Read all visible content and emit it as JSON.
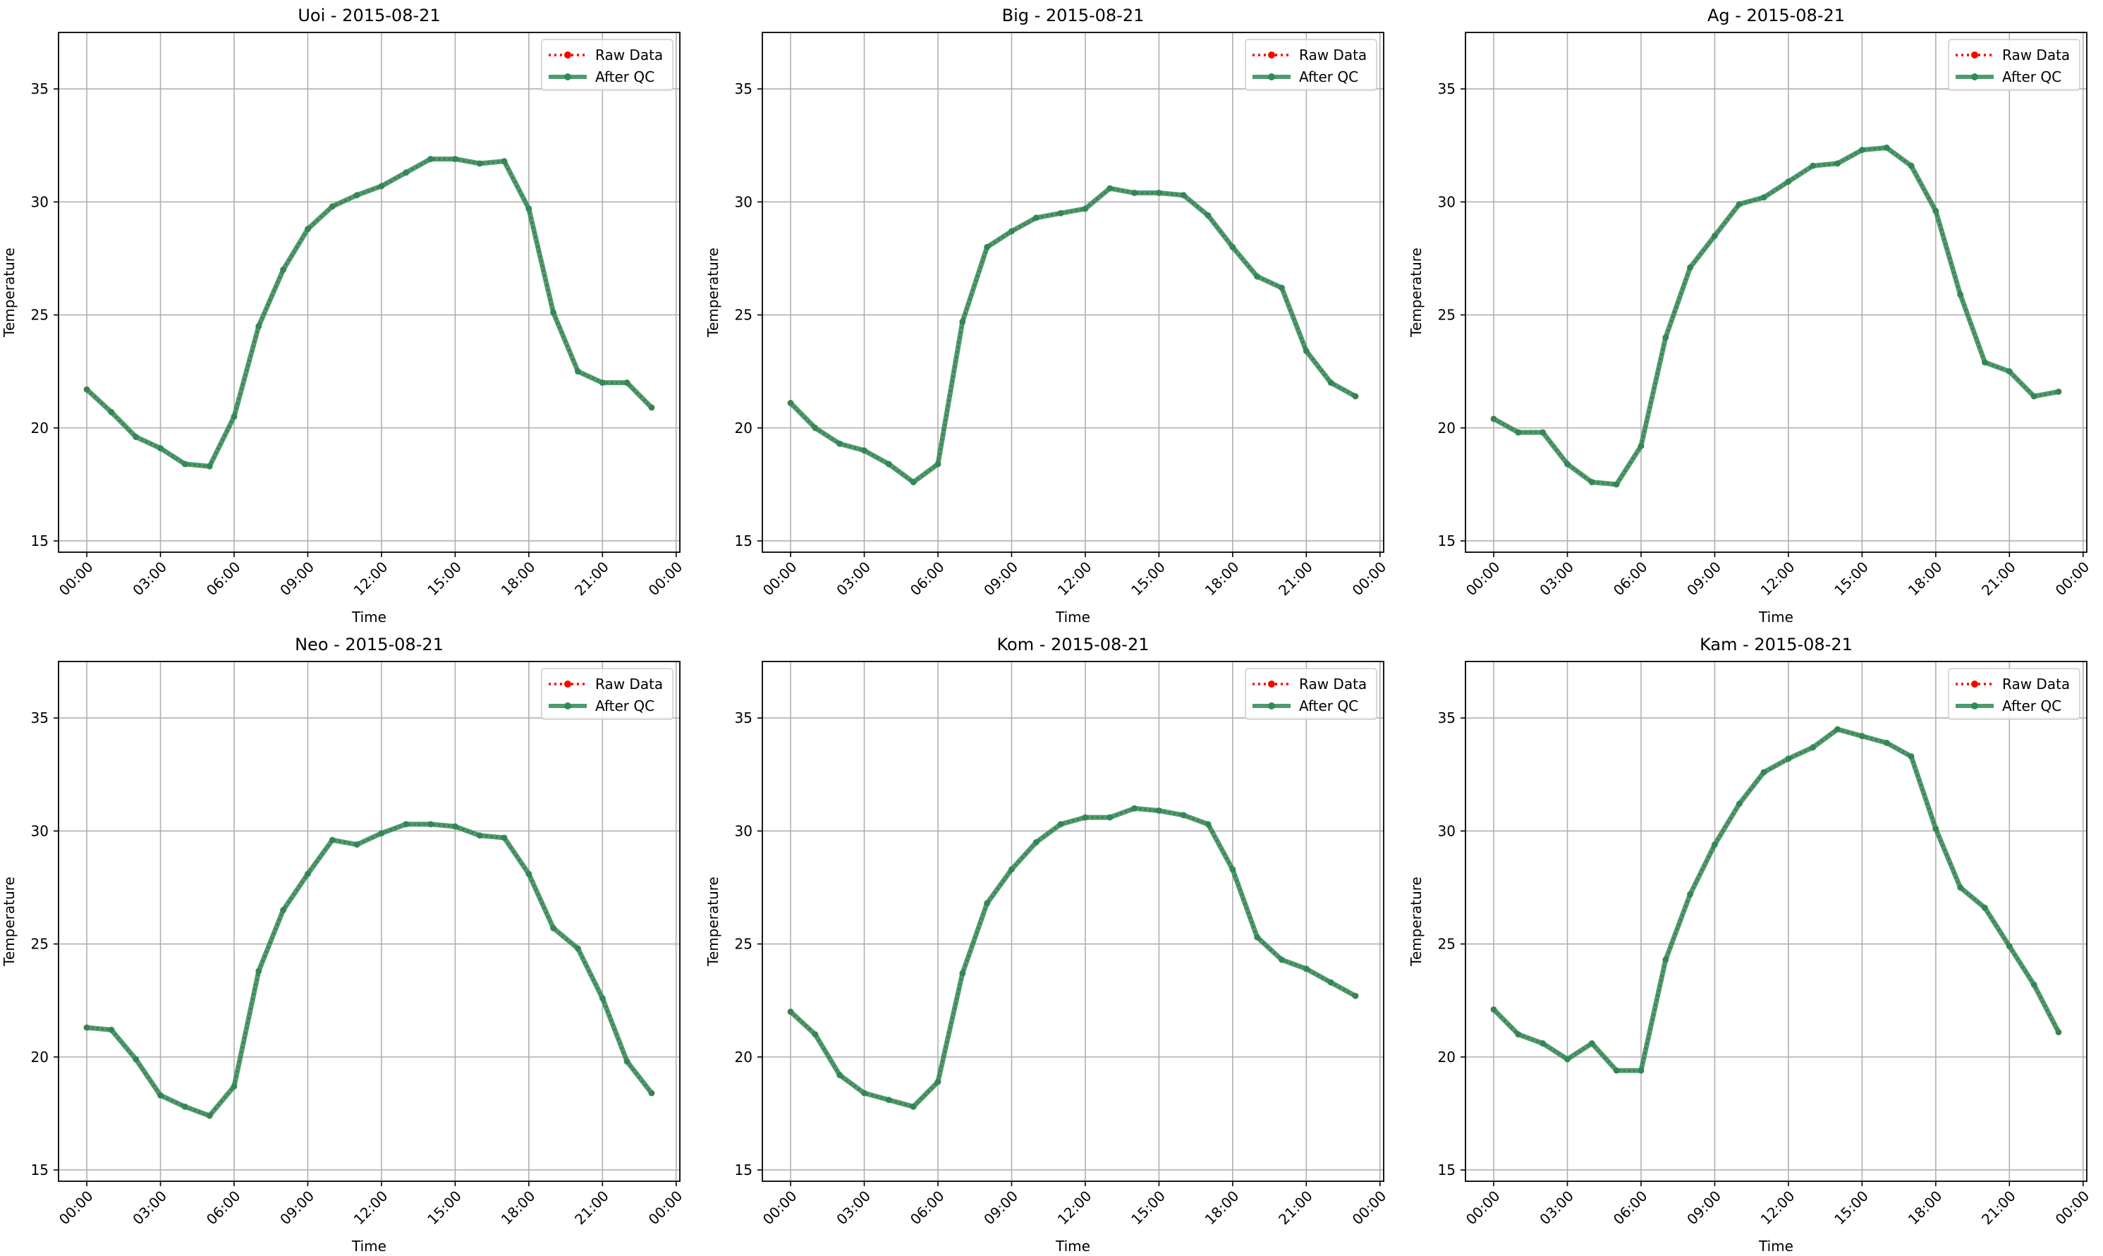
{
  "figure": {
    "legend_labels": [
      "Raw Data",
      "After QC"
    ]
  },
  "colors": {
    "raw": "#ff0000",
    "qc": "#2e8b57",
    "grid": "#b0b0b0",
    "axis": "#000000"
  },
  "chart_data": [
    {
      "type": "line",
      "title": "Uoi - 2015-08-21",
      "xlabel": "Time",
      "ylabel": "Temperature",
      "x_ticks": [
        "00:00",
        "03:00",
        "06:00",
        "09:00",
        "12:00",
        "15:00",
        "18:00",
        "21:00",
        "00:00"
      ],
      "y_ticks": [
        15,
        20,
        25,
        30,
        35
      ],
      "xlim": [
        -1.15,
        24.15
      ],
      "ylim": [
        14.5,
        37.5
      ],
      "grid": true,
      "legend_position": "top-right",
      "x": [
        "00:00",
        "01:00",
        "02:00",
        "03:00",
        "04:00",
        "05:00",
        "06:00",
        "07:00",
        "08:00",
        "09:00",
        "10:00",
        "11:00",
        "12:00",
        "13:00",
        "14:00",
        "15:00",
        "16:00",
        "17:00",
        "18:00",
        "19:00",
        "20:00",
        "21:00",
        "22:00",
        "23:00"
      ],
      "series": [
        {
          "name": "Raw Data",
          "values": [
            21.7,
            20.7,
            19.6,
            19.1,
            18.4,
            18.3,
            20.5,
            24.5,
            27.0,
            28.8,
            29.8,
            30.3,
            30.7,
            31.3,
            31.9,
            31.9,
            31.7,
            31.8,
            29.7,
            25.1,
            22.5,
            22.0,
            22.0,
            20.9
          ]
        },
        {
          "name": "After QC",
          "values": [
            21.7,
            20.7,
            19.6,
            19.1,
            18.4,
            18.3,
            20.5,
            24.5,
            27.0,
            28.8,
            29.8,
            30.3,
            30.7,
            31.3,
            31.9,
            31.9,
            31.7,
            31.8,
            29.7,
            25.1,
            22.5,
            22.0,
            22.0,
            20.9
          ]
        }
      ]
    },
    {
      "type": "line",
      "title": "Big - 2015-08-21",
      "xlabel": "Time",
      "ylabel": "Temperature",
      "x_ticks": [
        "00:00",
        "03:00",
        "06:00",
        "09:00",
        "12:00",
        "15:00",
        "18:00",
        "21:00",
        "00:00"
      ],
      "y_ticks": [
        15,
        20,
        25,
        30,
        35
      ],
      "xlim": [
        -1.15,
        24.15
      ],
      "ylim": [
        14.5,
        37.5
      ],
      "grid": true,
      "legend_position": "top-right",
      "x": [
        "00:00",
        "01:00",
        "02:00",
        "03:00",
        "04:00",
        "05:00",
        "06:00",
        "07:00",
        "08:00",
        "09:00",
        "10:00",
        "11:00",
        "12:00",
        "13:00",
        "14:00",
        "15:00",
        "16:00",
        "17:00",
        "18:00",
        "19:00",
        "20:00",
        "21:00",
        "22:00",
        "23:00"
      ],
      "series": [
        {
          "name": "Raw Data",
          "values": [
            21.1,
            20.0,
            19.3,
            19.0,
            18.4,
            17.6,
            18.4,
            24.7,
            28.0,
            28.7,
            29.3,
            29.5,
            29.7,
            30.6,
            30.4,
            30.4,
            30.3,
            29.4,
            28.0,
            26.7,
            26.2,
            23.4,
            22.0,
            21.4
          ]
        },
        {
          "name": "After QC",
          "values": [
            21.1,
            20.0,
            19.3,
            19.0,
            18.4,
            17.6,
            18.4,
            24.7,
            28.0,
            28.7,
            29.3,
            29.5,
            29.7,
            30.6,
            30.4,
            30.4,
            30.3,
            29.4,
            28.0,
            26.7,
            26.2,
            23.4,
            22.0,
            21.4
          ]
        }
      ]
    },
    {
      "type": "line",
      "title": "Ag - 2015-08-21",
      "xlabel": "Time",
      "ylabel": "Temperature",
      "x_ticks": [
        "00:00",
        "03:00",
        "06:00",
        "09:00",
        "12:00",
        "15:00",
        "18:00",
        "21:00",
        "00:00"
      ],
      "y_ticks": [
        15,
        20,
        25,
        30,
        35
      ],
      "xlim": [
        -1.15,
        24.15
      ],
      "ylim": [
        14.5,
        37.5
      ],
      "grid": true,
      "legend_position": "top-right",
      "x": [
        "00:00",
        "01:00",
        "02:00",
        "03:00",
        "04:00",
        "05:00",
        "06:00",
        "07:00",
        "08:00",
        "09:00",
        "10:00",
        "11:00",
        "12:00",
        "13:00",
        "14:00",
        "15:00",
        "16:00",
        "17:00",
        "18:00",
        "19:00",
        "20:00",
        "21:00",
        "22:00",
        "23:00"
      ],
      "series": [
        {
          "name": "Raw Data",
          "values": [
            20.4,
            19.8,
            19.8,
            18.4,
            17.6,
            17.5,
            19.2,
            24.0,
            27.1,
            28.5,
            29.9,
            30.2,
            30.9,
            31.6,
            31.7,
            32.3,
            32.4,
            31.6,
            29.6,
            25.9,
            22.9,
            22.5,
            21.4,
            21.6
          ]
        },
        {
          "name": "After QC",
          "values": [
            20.4,
            19.8,
            19.8,
            18.4,
            17.6,
            17.5,
            19.2,
            24.0,
            27.1,
            28.5,
            29.9,
            30.2,
            30.9,
            31.6,
            31.7,
            32.3,
            32.4,
            31.6,
            29.6,
            25.9,
            22.9,
            22.5,
            21.4,
            21.6
          ]
        }
      ]
    },
    {
      "type": "line",
      "title": "Neo - 2015-08-21",
      "xlabel": "Time",
      "ylabel": "Temperature",
      "x_ticks": [
        "00:00",
        "03:00",
        "06:00",
        "09:00",
        "12:00",
        "15:00",
        "18:00",
        "21:00",
        "00:00"
      ],
      "y_ticks": [
        15,
        20,
        25,
        30,
        35
      ],
      "xlim": [
        -1.15,
        24.15
      ],
      "ylim": [
        14.5,
        37.5
      ],
      "grid": true,
      "legend_position": "top-right",
      "x": [
        "00:00",
        "01:00",
        "02:00",
        "03:00",
        "04:00",
        "05:00",
        "06:00",
        "07:00",
        "08:00",
        "09:00",
        "10:00",
        "11:00",
        "12:00",
        "13:00",
        "14:00",
        "15:00",
        "16:00",
        "17:00",
        "18:00",
        "19:00",
        "20:00",
        "21:00",
        "22:00",
        "23:00"
      ],
      "series": [
        {
          "name": "Raw Data",
          "values": [
            21.3,
            21.2,
            19.9,
            18.3,
            17.8,
            17.4,
            18.7,
            23.8,
            26.5,
            28.1,
            29.6,
            29.4,
            29.9,
            30.3,
            30.3,
            30.2,
            29.8,
            29.7,
            28.1,
            25.7,
            24.8,
            22.6,
            19.8,
            18.4
          ]
        },
        {
          "name": "After QC",
          "values": [
            21.3,
            21.2,
            19.9,
            18.3,
            17.8,
            17.4,
            18.7,
            23.8,
            26.5,
            28.1,
            29.6,
            29.4,
            29.9,
            30.3,
            30.3,
            30.2,
            29.8,
            29.7,
            28.1,
            25.7,
            24.8,
            22.6,
            19.8,
            18.4
          ]
        }
      ]
    },
    {
      "type": "line",
      "title": "Kom - 2015-08-21",
      "xlabel": "Time",
      "ylabel": "Temperature",
      "x_ticks": [
        "00:00",
        "03:00",
        "06:00",
        "09:00",
        "12:00",
        "15:00",
        "18:00",
        "21:00",
        "00:00"
      ],
      "y_ticks": [
        15,
        20,
        25,
        30,
        35
      ],
      "xlim": [
        -1.15,
        24.15
      ],
      "ylim": [
        14.5,
        37.5
      ],
      "grid": true,
      "legend_position": "top-right",
      "x": [
        "00:00",
        "01:00",
        "02:00",
        "03:00",
        "04:00",
        "05:00",
        "06:00",
        "07:00",
        "08:00",
        "09:00",
        "10:00",
        "11:00",
        "12:00",
        "13:00",
        "14:00",
        "15:00",
        "16:00",
        "17:00",
        "18:00",
        "19:00",
        "20:00",
        "21:00",
        "22:00",
        "23:00"
      ],
      "series": [
        {
          "name": "Raw Data",
          "values": [
            22.0,
            21.0,
            19.2,
            18.4,
            18.1,
            17.8,
            18.9,
            23.7,
            26.8,
            28.3,
            29.5,
            30.3,
            30.6,
            30.6,
            31.0,
            30.9,
            30.7,
            30.3,
            28.3,
            25.3,
            24.3,
            23.9,
            23.3,
            22.7
          ]
        },
        {
          "name": "After QC",
          "values": [
            22.0,
            21.0,
            19.2,
            18.4,
            18.1,
            17.8,
            18.9,
            23.7,
            26.8,
            28.3,
            29.5,
            30.3,
            30.6,
            30.6,
            31.0,
            30.9,
            30.7,
            30.3,
            28.3,
            25.3,
            24.3,
            23.9,
            23.3,
            22.7
          ]
        }
      ]
    },
    {
      "type": "line",
      "title": "Kam - 2015-08-21",
      "xlabel": "Time",
      "ylabel": "Temperature",
      "x_ticks": [
        "00:00",
        "03:00",
        "06:00",
        "09:00",
        "12:00",
        "15:00",
        "18:00",
        "21:00",
        "00:00"
      ],
      "y_ticks": [
        15,
        20,
        25,
        30,
        35
      ],
      "xlim": [
        -1.15,
        24.15
      ],
      "ylim": [
        14.5,
        37.5
      ],
      "grid": true,
      "legend_position": "top-right",
      "x": [
        "00:00",
        "01:00",
        "02:00",
        "03:00",
        "04:00",
        "05:00",
        "06:00",
        "07:00",
        "08:00",
        "09:00",
        "10:00",
        "11:00",
        "12:00",
        "13:00",
        "14:00",
        "15:00",
        "16:00",
        "17:00",
        "18:00",
        "19:00",
        "20:00",
        "21:00",
        "22:00",
        "23:00"
      ],
      "series": [
        {
          "name": "Raw Data",
          "values": [
            22.1,
            21.0,
            20.6,
            19.9,
            20.6,
            19.4,
            19.4,
            24.3,
            27.2,
            29.4,
            31.2,
            32.6,
            33.2,
            33.7,
            34.5,
            34.2,
            33.9,
            33.3,
            30.1,
            27.5,
            26.6,
            24.9,
            23.2,
            21.1
          ]
        },
        {
          "name": "After QC",
          "values": [
            22.1,
            21.0,
            20.6,
            19.9,
            20.6,
            19.4,
            19.4,
            24.3,
            27.2,
            29.4,
            31.2,
            32.6,
            33.2,
            33.7,
            34.5,
            34.2,
            33.9,
            33.3,
            30.1,
            27.5,
            26.6,
            24.9,
            23.2,
            21.1
          ]
        }
      ]
    }
  ]
}
